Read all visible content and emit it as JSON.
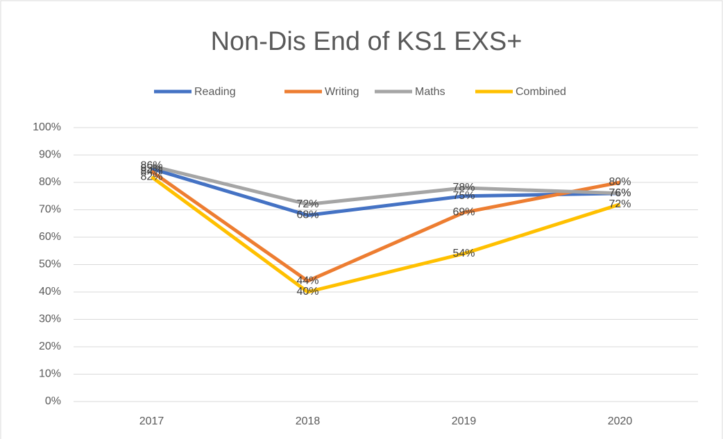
{
  "chart_data": {
    "type": "line",
    "title": "Non-Dis End of KS1 EXS+",
    "categories": [
      "2017",
      "2018",
      "2019",
      "2020"
    ],
    "series": [
      {
        "name": "Reading",
        "color": "#4472c4",
        "values": [
          85,
          68,
          75,
          76
        ],
        "value_labels": [
          "85%",
          "68%",
          "75%",
          "76%"
        ]
      },
      {
        "name": "Writing",
        "color": "#ed7d31",
        "values": [
          84,
          44,
          69,
          80
        ],
        "value_labels": [
          "84%",
          "44%",
          "69%",
          "80%"
        ]
      },
      {
        "name": "Maths",
        "color": "#a5a5a5",
        "values": [
          86,
          72,
          78,
          76
        ],
        "value_labels": [
          "86%",
          "72%",
          "78%",
          "76%"
        ]
      },
      {
        "name": "Combined",
        "color": "#ffc000",
        "values": [
          82,
          40,
          54,
          72
        ],
        "value_labels": [
          "82%",
          "40%",
          "54%",
          "72%"
        ]
      }
    ],
    "ylim": [
      0,
      100
    ],
    "yticks": [
      {
        "value": 0,
        "label": "0%"
      },
      {
        "value": 10,
        "label": "10%"
      },
      {
        "value": 20,
        "label": "20%"
      },
      {
        "value": 30,
        "label": "30%"
      },
      {
        "value": 40,
        "label": "40%"
      },
      {
        "value": 50,
        "label": "50%"
      },
      {
        "value": 60,
        "label": "60%"
      },
      {
        "value": 70,
        "label": "70%"
      },
      {
        "value": 80,
        "label": "80%"
      },
      {
        "value": 90,
        "label": "90%"
      },
      {
        "value": 100,
        "label": "100%"
      }
    ],
    "grid": true,
    "legend": "top"
  }
}
